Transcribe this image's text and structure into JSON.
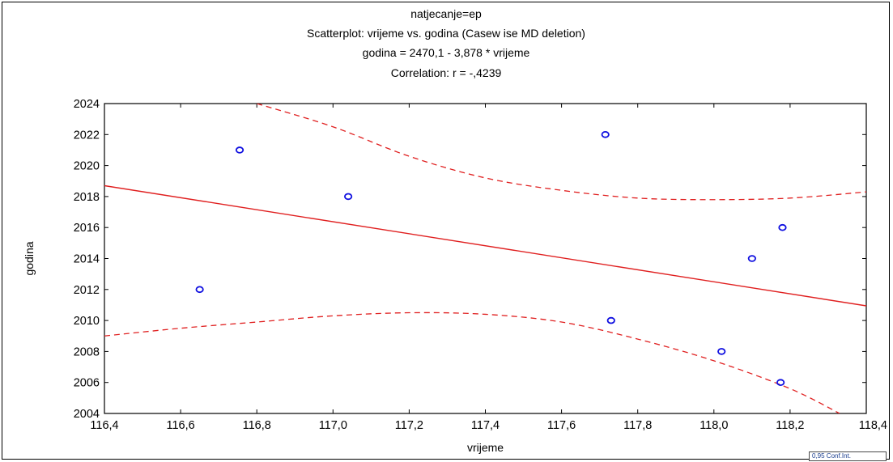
{
  "chart_data": {
    "type": "scatter",
    "title_lines": [
      "natjecanje=ep",
      "Scatterplot: vrijeme  vs. godina   (Casew ise MD deletion)",
      "godina   = 2470,1 - 3,878  * vrijeme",
      "Correlation: r = -,4239"
    ],
    "xlabel": "vrijeme",
    "ylabel": "godina",
    "xlim": [
      116.4,
      118.4
    ],
    "ylim": [
      2004,
      2024
    ],
    "x_ticks": [
      116.4,
      116.6,
      116.8,
      117.0,
      117.2,
      117.4,
      117.6,
      117.8,
      118.0,
      118.2,
      118.4
    ],
    "x_tick_labels": [
      "116,4",
      "116,6",
      "116,8",
      "117,0",
      "117,2",
      "117,4",
      "117,6",
      "117,8",
      "118,0",
      "118,2",
      "118,4"
    ],
    "y_ticks": [
      2004,
      2006,
      2008,
      2010,
      2012,
      2014,
      2016,
      2018,
      2020,
      2022,
      2024
    ],
    "y_tick_labels": [
      "2004",
      "2006",
      "2008",
      "2010",
      "2012",
      "2014",
      "2016",
      "2018",
      "2020",
      "2022",
      "2024"
    ],
    "points": [
      {
        "x": 116.65,
        "y": 2012
      },
      {
        "x": 116.755,
        "y": 2021
      },
      {
        "x": 117.04,
        "y": 2018
      },
      {
        "x": 117.715,
        "y": 2022
      },
      {
        "x": 117.73,
        "y": 2010
      },
      {
        "x": 118.02,
        "y": 2008
      },
      {
        "x": 118.1,
        "y": 2014
      },
      {
        "x": 118.18,
        "y": 2016
      },
      {
        "x": 118.175,
        "y": 2006
      }
    ],
    "regression": {
      "intercept": 2470.1,
      "slope": -3.878
    },
    "confidence_upper": [
      {
        "x": 116.8,
        "y": 2024
      },
      {
        "x": 117.0,
        "y": 2022.5
      },
      {
        "x": 117.2,
        "y": 2020.6
      },
      {
        "x": 117.4,
        "y": 2019.2
      },
      {
        "x": 117.6,
        "y": 2018.4
      },
      {
        "x": 117.8,
        "y": 2017.9
      },
      {
        "x": 118.0,
        "y": 2017.8
      },
      {
        "x": 118.2,
        "y": 2017.9
      },
      {
        "x": 118.4,
        "y": 2018.3
      }
    ],
    "confidence_lower": [
      {
        "x": 116.4,
        "y": 2009.0
      },
      {
        "x": 116.6,
        "y": 2009.5
      },
      {
        "x": 116.8,
        "y": 2009.9
      },
      {
        "x": 117.0,
        "y": 2010.3
      },
      {
        "x": 117.2,
        "y": 2010.5
      },
      {
        "x": 117.4,
        "y": 2010.4
      },
      {
        "x": 117.6,
        "y": 2009.9
      },
      {
        "x": 117.8,
        "y": 2008.8
      },
      {
        "x": 118.0,
        "y": 2007.4
      },
      {
        "x": 118.2,
        "y": 2005.6
      },
      {
        "x": 118.33,
        "y": 2004.0
      }
    ],
    "legend_text": "0,95 Conf.Int.",
    "grid": false,
    "colors": {
      "points": "#1010e0",
      "regression": "#e02020",
      "axes": "#000000"
    }
  }
}
